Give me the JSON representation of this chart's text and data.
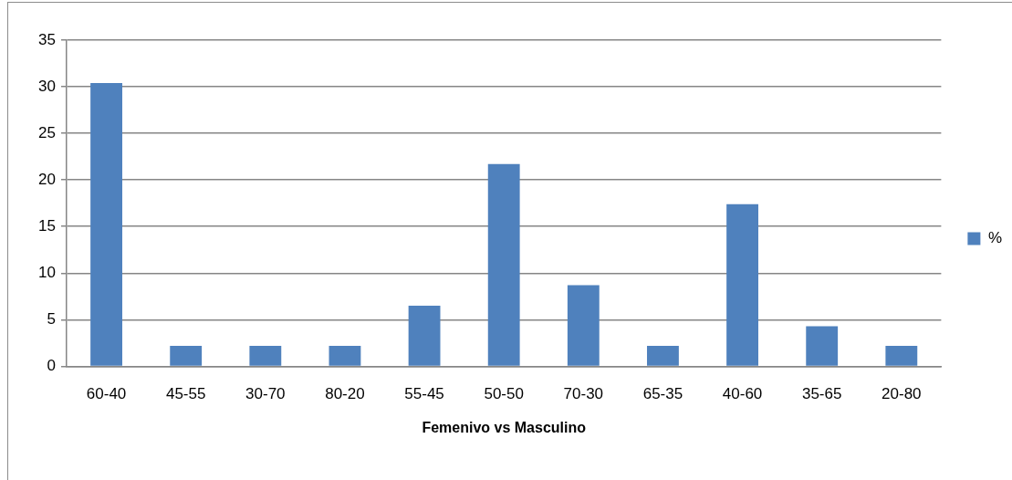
{
  "chart_data": {
    "type": "bar",
    "xlabel": "Femenivo vs Masculino",
    "categories": [
      "60-40",
      "45-55",
      "30-70",
      "80-20",
      "55-45",
      "50-50",
      "70-30",
      "65-35",
      "40-60",
      "35-65",
      "20-80"
    ],
    "series": [
      {
        "name": "%",
        "color": "#4f81bd",
        "values": [
          30.4,
          2.2,
          2.2,
          2.2,
          6.5,
          21.7,
          8.7,
          2.2,
          17.4,
          4.3,
          2.2
        ]
      }
    ],
    "ylim": [
      0,
      35
    ],
    "yticks": [
      0,
      5,
      10,
      15,
      20,
      25,
      30,
      35
    ],
    "grid": "y",
    "legend": "right"
  }
}
